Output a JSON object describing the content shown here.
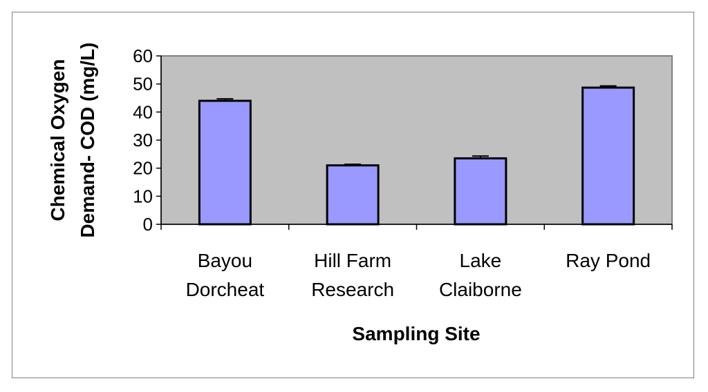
{
  "chart_data": {
    "type": "bar",
    "categories": [
      [
        "Bayou",
        "Dorcheat"
      ],
      [
        "Hill Farm",
        "Research"
      ],
      [
        "Lake",
        "Claiborne"
      ],
      [
        "Ray Pond"
      ]
    ],
    "values": [
      44,
      21,
      23.5,
      48.7
    ],
    "errors": [
      0.7,
      0.4,
      0.8,
      0.6
    ],
    "title": "",
    "xlabel": "Sampling Site",
    "ylabel": [
      "Chemical Oxygen",
      "Demand- COD (mg/L)"
    ],
    "ylim": [
      0,
      60
    ],
    "yticks": [
      0,
      10,
      20,
      30,
      40,
      50,
      60
    ],
    "plot_bg": "#c0c0c0",
    "bar_color": "#9999ff",
    "grid": false,
    "legend": "none"
  }
}
